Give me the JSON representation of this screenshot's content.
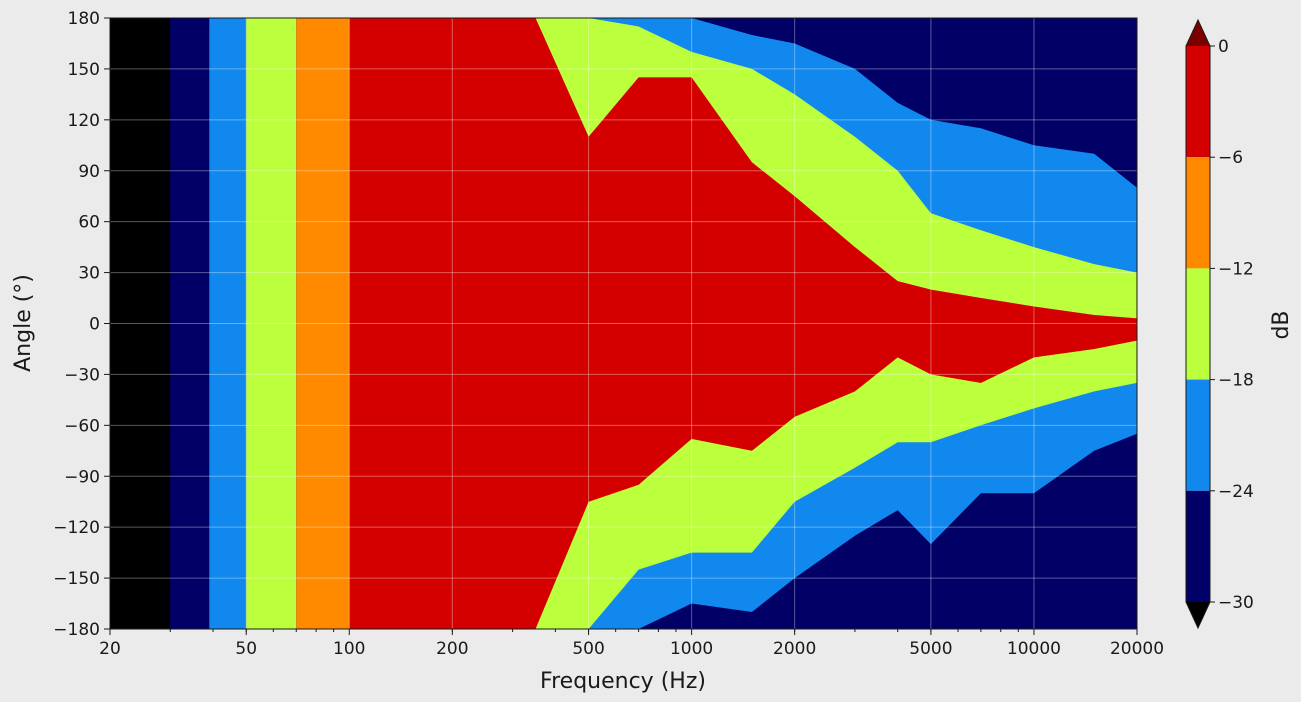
{
  "chart_data": {
    "type": "heatmap",
    "subtype": "filled-contour",
    "xlabel": "Frequency (Hz)",
    "ylabel": "Angle (°)",
    "xscale": "log",
    "xlim": [
      20,
      20000
    ],
    "ylim": [
      -180,
      180
    ],
    "x_ticks": [
      20,
      50,
      100,
      200,
      500,
      1000,
      2000,
      5000,
      10000,
      20000
    ],
    "x_tick_labels": [
      "20",
      "50",
      "100",
      "200",
      "500",
      "1000",
      "2000",
      "5000",
      "10000",
      "20000"
    ],
    "y_ticks": [
      180,
      150,
      120,
      90,
      60,
      30,
      0,
      -30,
      -60,
      -90,
      -120,
      -150,
      -180
    ],
    "y_tick_labels": [
      "180",
      "150",
      "120",
      "90",
      "60",
      "30",
      "0",
      "−30",
      "−60",
      "−90",
      "−120",
      "−150",
      "−180"
    ],
    "grid": true,
    "colorbar": {
      "label": "dB",
      "ticks": [
        0,
        -6,
        -12,
        -18,
        -24,
        -30
      ],
      "tick_labels": [
        "0",
        "−6",
        "−12",
        "−18",
        "−24",
        "−30"
      ],
      "extend": "both",
      "levels": [
        {
          "range": [
            -6,
            0
          ],
          "color": "#d40000"
        },
        {
          "range": [
            -12,
            -6
          ],
          "color": "#ff8a00"
        },
        {
          "range": [
            -18,
            -12
          ],
          "color": "#bcff3c"
        },
        {
          "range": [
            -24,
            -18
          ],
          "color": "#1188ee"
        },
        {
          "range": [
            -30,
            -24
          ],
          "color": "#000066"
        }
      ],
      "over_color": "#7a0000",
      "under_color": "#000000"
    },
    "frequency_bands": [
      {
        "x": [
          20,
          30
        ],
        "level": "below -30"
      },
      {
        "x": [
          30,
          39
        ],
        "level": "-30 to -24"
      },
      {
        "x": [
          39,
          50
        ],
        "level": "-24 to -18"
      },
      {
        "x": [
          50,
          70
        ],
        "level": "-18 to -12"
      },
      {
        "x": [
          70,
          100
        ],
        "level": "-12 to -6"
      },
      {
        "x": [
          100,
          350
        ],
        "level": "-6 to 0 at all angles"
      }
    ],
    "contours_deg": {
      "note": "Boundary angle above which (upper) or below which (lower) level falls; by frequency",
      "frequency": [
        350,
        500,
        700,
        1000,
        1500,
        2000,
        3000,
        4000,
        5000,
        7000,
        10000,
        15000,
        20000
      ],
      "upper_minus6": [
        180,
        110,
        145,
        145,
        95,
        75,
        45,
        25,
        20,
        15,
        10,
        5,
        3
      ],
      "upper_minus12": [
        180,
        180,
        175,
        160,
        150,
        135,
        110,
        90,
        65,
        55,
        45,
        35,
        30
      ],
      "upper_minus18": [
        180,
        180,
        180,
        180,
        170,
        165,
        150,
        130,
        120,
        115,
        105,
        100,
        80
      ],
      "lower_minus6": [
        -180,
        -105,
        -95,
        -68,
        -75,
        -55,
        -40,
        -20,
        -30,
        -35,
        -20,
        -15,
        -10
      ],
      "lower_minus12": [
        -180,
        -180,
        -145,
        -135,
        -135,
        -105,
        -85,
        -70,
        -70,
        -60,
        -50,
        -40,
        -35
      ],
      "lower_minus18": [
        -180,
        -180,
        -180,
        -165,
        -170,
        -150,
        -125,
        -110,
        -130,
        -100,
        -100,
        -75,
        -65
      ]
    }
  }
}
